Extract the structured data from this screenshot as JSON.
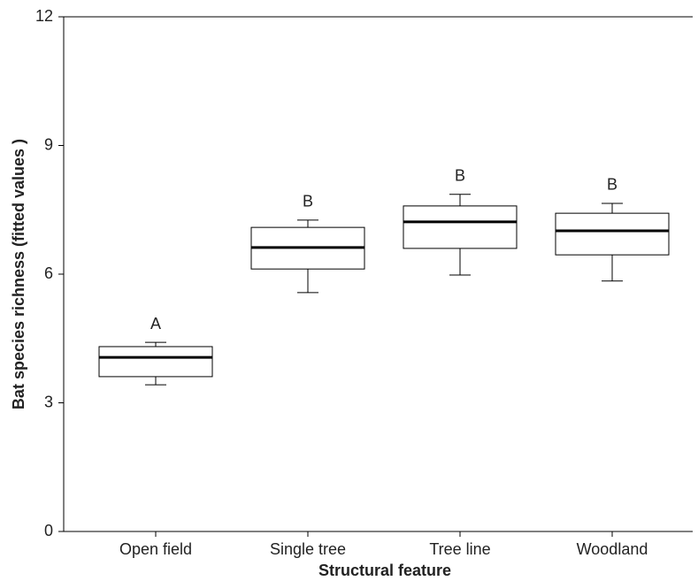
{
  "chart_data": {
    "type": "box",
    "x_label": "Structural feature",
    "y_label": "Bat species richness (fitted values )",
    "categories": [
      "Open field",
      "Single tree",
      "Tree line",
      "Woodland"
    ],
    "boxes": [
      {
        "min": 3.42,
        "q1": 3.61,
        "median": 4.06,
        "q3": 4.31,
        "max": 4.41
      },
      {
        "min": 5.57,
        "q1": 6.12,
        "median": 6.62,
        "q3": 7.09,
        "max": 7.26
      },
      {
        "min": 5.98,
        "q1": 6.6,
        "median": 7.22,
        "q3": 7.59,
        "max": 7.86
      },
      {
        "min": 5.84,
        "q1": 6.45,
        "median": 7.01,
        "q3": 7.42,
        "max": 7.65
      }
    ],
    "group_labels": [
      "A",
      "B",
      "B",
      "B"
    ],
    "ylim": [
      0,
      12
    ],
    "yticks": [
      0,
      3,
      6,
      9,
      12
    ],
    "grid": false,
    "color": "#000000"
  }
}
